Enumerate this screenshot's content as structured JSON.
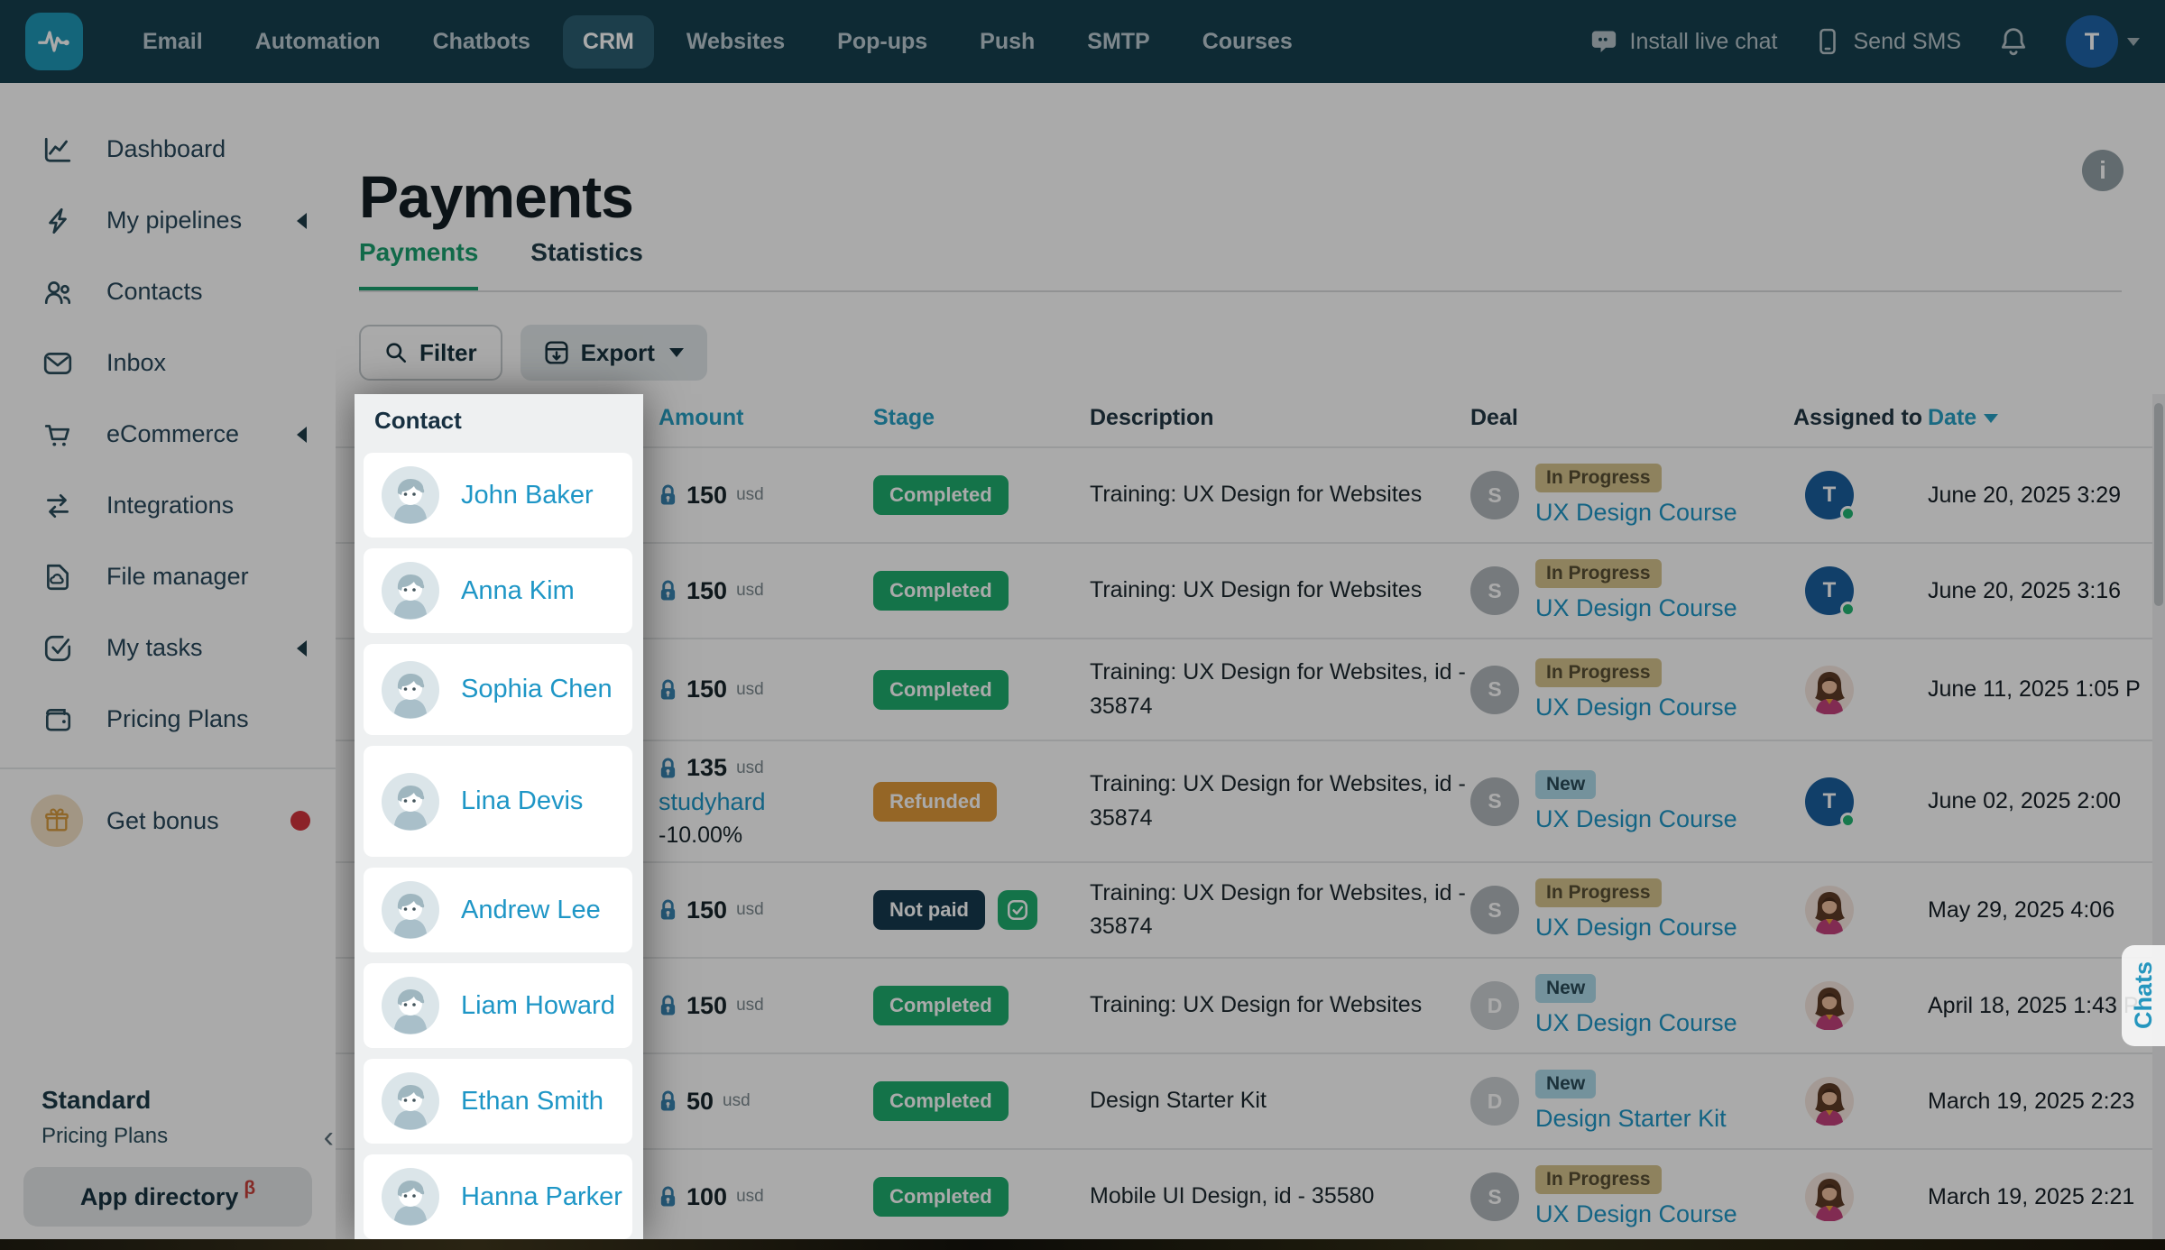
{
  "nav": {
    "items": [
      {
        "label": "Email"
      },
      {
        "label": "Automation"
      },
      {
        "label": "Chatbots"
      },
      {
        "label": "CRM",
        "active": true
      },
      {
        "label": "Websites"
      },
      {
        "label": "Pop-ups"
      },
      {
        "label": "Push"
      },
      {
        "label": "SMTP"
      },
      {
        "label": "Courses"
      }
    ],
    "install_chat": "Install live chat",
    "send_sms": "Send SMS",
    "avatar_initial": "T"
  },
  "sidebar": {
    "items": [
      {
        "label": "Dashboard",
        "icon": "dashboard"
      },
      {
        "label": "My pipelines",
        "icon": "pipelines",
        "collapsible": true
      },
      {
        "label": "Contacts",
        "icon": "contacts"
      },
      {
        "label": "Inbox",
        "icon": "inbox"
      },
      {
        "label": "eCommerce",
        "icon": "ecommerce",
        "collapsible": true
      },
      {
        "label": "Integrations",
        "icon": "integrations"
      },
      {
        "label": "File manager",
        "icon": "files"
      },
      {
        "label": "My tasks",
        "icon": "tasks",
        "collapsible": true
      },
      {
        "label": "Pricing Plans",
        "icon": "wallet"
      }
    ],
    "bonus": {
      "label": "Get bonus"
    },
    "plan": {
      "name": "Standard",
      "link": "Pricing Plans"
    },
    "app_directory": {
      "label": "App directory",
      "beta": "β"
    }
  },
  "page": {
    "title": "Payments",
    "tabs": [
      {
        "label": "Payments",
        "active": true
      },
      {
        "label": "Statistics"
      }
    ],
    "filter_label": "Filter",
    "export_label": "Export",
    "info_glyph": "i"
  },
  "table": {
    "columns": [
      "Contact",
      "Amount",
      "Stage",
      "Description",
      "Deal",
      "Assigned to",
      "Date"
    ],
    "rows": [
      {
        "name": "John Baker",
        "amount": "150",
        "currency": "usd",
        "stage": {
          "label": "Completed",
          "type": "completed"
        },
        "description": "Training: UX Design for Websites",
        "deal": {
          "letter": "S",
          "badge": "In Progress",
          "badge_type": "inprogress",
          "link": "UX Design Course"
        },
        "assigned": {
          "type": "user",
          "initial": "T"
        },
        "date": "June 20, 2025 3:29"
      },
      {
        "name": "Anna Kim",
        "amount": "150",
        "currency": "usd",
        "stage": {
          "label": "Completed",
          "type": "completed"
        },
        "description": "Training: UX Design for Websites",
        "deal": {
          "letter": "S",
          "badge": "In Progress",
          "badge_type": "inprogress",
          "link": "UX Design Course"
        },
        "assigned": {
          "type": "user",
          "initial": "T"
        },
        "date": "June 20, 2025 3:16"
      },
      {
        "name": "Sophia Chen",
        "amount": "150",
        "currency": "usd",
        "stage": {
          "label": "Completed",
          "type": "completed"
        },
        "description": "Training: UX Design for Websites, id - 35874",
        "deal": {
          "letter": "S",
          "badge": "In Progress",
          "badge_type": "inprogress",
          "link": "UX Design Course"
        },
        "assigned": {
          "type": "woman"
        },
        "date": "June 11, 2025 1:05 P"
      },
      {
        "name": "Lina Devis",
        "amount": "135",
        "currency": "usd",
        "promo": "studyhard",
        "discount": "-10.00%",
        "stage": {
          "label": "Refunded",
          "type": "refunded"
        },
        "description": "Training: UX Design for Websites, id - 35874",
        "deal": {
          "letter": "S",
          "badge": "New",
          "badge_type": "new",
          "link": "UX Design Course"
        },
        "assigned": {
          "type": "user",
          "initial": "T"
        },
        "date": "June 02, 2025 2:00"
      },
      {
        "name": "Andrew Lee",
        "amount": "150",
        "currency": "usd",
        "stage": {
          "label": "Not paid",
          "type": "notpaid"
        },
        "pay_button": true,
        "description": "Training: UX Design for Websites, id - 35874",
        "deal": {
          "letter": "S",
          "badge": "In Progress",
          "badge_type": "inprogress",
          "link": "UX Design Course"
        },
        "assigned": {
          "type": "woman"
        },
        "date": "May 29, 2025 4:06"
      },
      {
        "name": "Liam Howard",
        "amount": "150",
        "currency": "usd",
        "stage": {
          "label": "Completed",
          "type": "completed"
        },
        "description": "Training: UX Design for Websites",
        "deal": {
          "letter": "D",
          "badge": "New",
          "badge_type": "new",
          "link": "UX Design Course"
        },
        "assigned": {
          "type": "woman"
        },
        "date": "April 18, 2025 1:43 P"
      },
      {
        "name": "Ethan Smith",
        "amount": "50",
        "currency": "usd",
        "stage": {
          "label": "Completed",
          "type": "completed"
        },
        "description": "Design Starter Kit",
        "deal": {
          "letter": "D",
          "badge": "New",
          "badge_type": "new",
          "link": "Design Starter Kit"
        },
        "assigned": {
          "type": "woman"
        },
        "date": "March 19, 2025 2:23"
      },
      {
        "name": "Hanna Parker",
        "amount": "100",
        "currency": "usd",
        "stage": {
          "label": "Completed",
          "type": "completed"
        },
        "description": "Mobile UI Design, id - 35580",
        "deal": {
          "letter": "S",
          "badge": "In Progress",
          "badge_type": "inprogress",
          "link": "UX Design Course"
        },
        "assigned": {
          "type": "woman"
        },
        "date": "March 19, 2025 2:21"
      }
    ]
  },
  "chats_tab": "Chats",
  "colors": {
    "nav_bg": "#15404f",
    "brand_teal": "#1f98b8",
    "green": "#1ead6e",
    "orange": "#e0993a",
    "navy_badge": "#16394f",
    "link_blue": "#1e96c6",
    "header_teal": "#27a0c4",
    "overlay": "rgba(0,0,0,0.335)"
  }
}
